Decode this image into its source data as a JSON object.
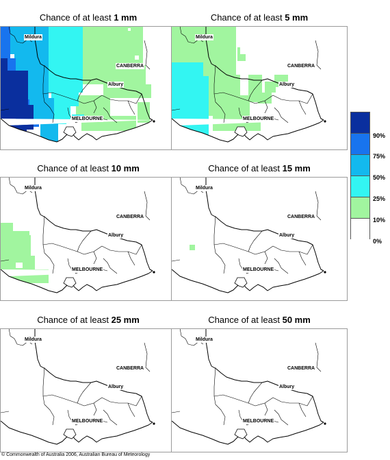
{
  "panels": [
    {
      "prefix": "Chance of at least ",
      "amount": "1 mm"
    },
    {
      "prefix": "Chance of at least ",
      "amount": "5 mm"
    },
    {
      "prefix": "Chance of at least ",
      "amount": "10 mm"
    },
    {
      "prefix": "Chance of at least ",
      "amount": "15 mm"
    },
    {
      "prefix": "Chance of at least ",
      "amount": "25 mm"
    },
    {
      "prefix": "Chance of at least ",
      "amount": "50 mm"
    }
  ],
  "places": {
    "mildura": "Mildura",
    "canberra": "CANBERRA",
    "albury": "Albury",
    "melbourne": "MELBOURNE"
  },
  "legend": {
    "ticks": [
      "90%",
      "75%",
      "50%",
      "25%",
      "10%",
      "0%"
    ],
    "colors": [
      "#0a2f9e",
      "#1874ee",
      "#13b9ee",
      "#33f5f2",
      "#a1f59f",
      "#ffffff"
    ]
  },
  "copyright": "© Commonwealth of Australia 2006, Australian Bureau of Meteorology"
}
